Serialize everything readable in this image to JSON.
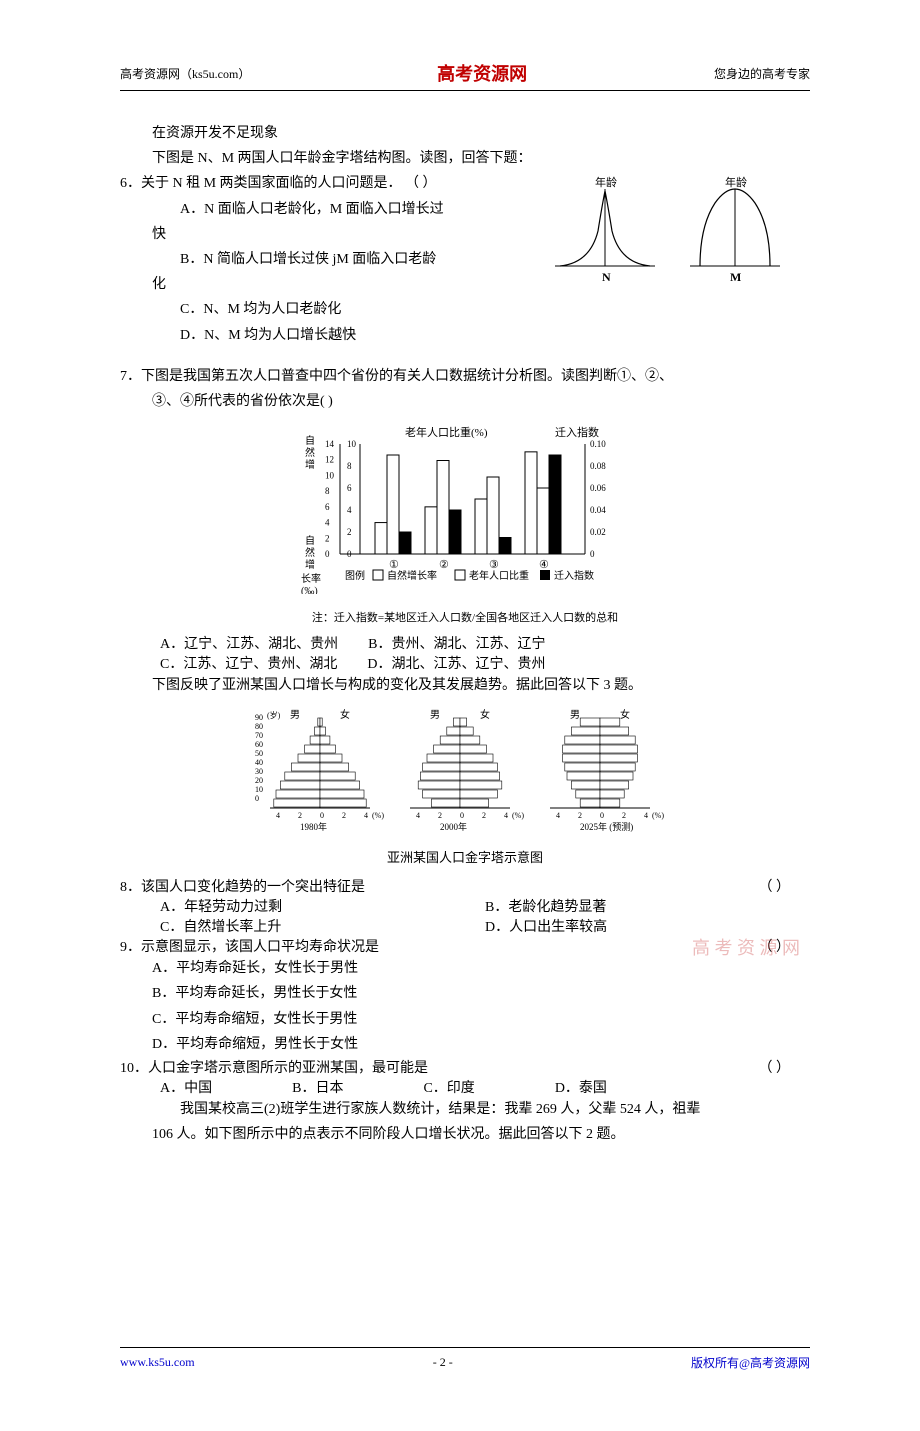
{
  "header": {
    "left": "高考资源网（ks5u.com）",
    "center": "高考资源网",
    "right": "您身边的高考专家"
  },
  "intro_lines": {
    "l1": "在资源开发不足现象",
    "l2": "下图是 N、M 两国人口年龄金字塔结构图。读图，回答下题："
  },
  "q6": {
    "stem": "6．关于 N 租 M 两类国家面临的人口问题是．    （  ）",
    "optA1": "A．N 面临人口老龄化，M 面临入口增长过",
    "optA2": "快",
    "optB1": "B．N 简临人口增长过侠 jM 面临入口老龄",
    "optB2": "化",
    "optC": "C．N、M 均为人口老龄化",
    "optD": "D．N、M 均为人口增长越快"
  },
  "pyramid_labels": {
    "age": "年龄",
    "N": "N",
    "M": "M",
    "stroke": "#000000"
  },
  "q7": {
    "stem1": "7．下图是我国第五次人口普查中四个省份的有关人口数据统计分析图。读图判断①、②、",
    "stem2": "③、④所代表的省份依次是(     )",
    "optA": "A．辽宁、江苏、湖北、贵州",
    "optB": "B．贵州、湖北、江苏、辽宁",
    "optC": "C．江苏、辽宁、贵州、湖北",
    "optD": "D．湖北、江苏、辽宁、贵州",
    "follow": "下图反映了亚洲某国人口增长与构成的变化及其发展趋势。据此回答以下 3 题。"
  },
  "bar_chart": {
    "title_left": "老年人口比重(%)",
    "title_right": "迁入指数",
    "y_left_label": "自然增长率(‰)",
    "y_left_ticks": [
      "14",
      "12",
      "10",
      "8",
      "6",
      "4",
      "2",
      "0"
    ],
    "y_left_pct": [
      "10",
      "8",
      "6",
      "4",
      "2",
      "0"
    ],
    "y_right_ticks": [
      "0.10",
      "0.08",
      "0.06",
      "0.04",
      "0.02",
      "0"
    ],
    "categories": [
      "①",
      "②",
      "③",
      "④"
    ],
    "legend_label": "图例",
    "legend_items": [
      "自然增长率",
      "老年人口比重",
      "迁入指数"
    ],
    "legend_colors": [
      "#ffffff",
      "#ffffff",
      "#000000"
    ],
    "note": "注：迁入指数=某地区迁入人口数/全国各地区迁入人口数的总和",
    "groups": [
      {
        "white1": 4,
        "white2": 9,
        "black": 0.02
      },
      {
        "white1": 6,
        "white2": 8.5,
        "black": 0.04
      },
      {
        "white1": 7,
        "white2": 7,
        "black": 0.015
      },
      {
        "white1": 13,
        "white2": 6,
        "black": 0.09
      }
    ],
    "bar_colors": {
      "growth": "#ffffff",
      "elderly": "#ffffff",
      "migration": "#000000"
    },
    "axis_color": "#000000",
    "bg": "#ffffff"
  },
  "pyramid3": {
    "caption": "亚洲某国人口金字塔示意图",
    "age_label": "(岁)",
    "ages": [
      "90",
      "80",
      "70",
      "60",
      "50",
      "40",
      "30",
      "20",
      "10",
      "0"
    ],
    "male": "男",
    "female": "女",
    "x_ticks": [
      "4",
      "2",
      "0",
      "2",
      "4"
    ],
    "pct": "(%)",
    "years": [
      "1980年",
      "2000年",
      "2025年 (预测)"
    ],
    "stroke": "#000000"
  },
  "q8": {
    "stem": "8．该国人口变化趋势的一个突出特征是",
    "paren": "（     ）",
    "optA": "A．年轻劳动力过剩",
    "optB": "B．老龄化趋势显著",
    "optC": "C．自然增长率上升",
    "optD": "D．人口出生率较高"
  },
  "q9": {
    "stem": "9．示意图显示，该国人口平均寿命状况是",
    "paren": "（     ）",
    "optA": "A．平均寿命延长，女性长于男性",
    "optB": "B．平均寿命延长，男性长于女性",
    "optC": "C．平均寿命缩短，女性长于男性",
    "optD": "D．平均寿命缩短，男性长于女性"
  },
  "q10": {
    "stem": "10．人口金字塔示意图所示的亚洲某国，最可能是",
    "paren": "（     ）",
    "optA": "A．中国",
    "optB": "B．日本",
    "optC": "C．印度",
    "optD": "D．泰国",
    "follow1": "我国某校高三(2)班学生进行家族人数统计，结果是：我辈 269 人，父辈 524 人，祖辈",
    "follow2": "106 人。如下图所示中的点表示不同阶段人口增长状况。据此回答以下 2 题。"
  },
  "watermark": "高 考 资 源 网",
  "footer": {
    "left": "www.ks5u.com",
    "center": "- 2 -",
    "right": "版权所有@高考资源网"
  }
}
